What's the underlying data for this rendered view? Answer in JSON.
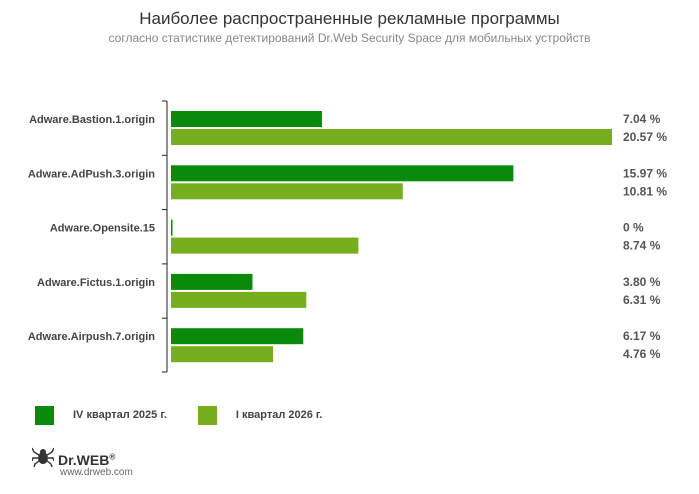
{
  "header": {
    "title": "Наиболее распространенные рекламные программы",
    "subtitle": "согласно статистике детектирований Dr.Web Security Space для мобильных устройств"
  },
  "chart_data": {
    "type": "bar",
    "orientation": "horizontal",
    "categories": [
      "Adware.Bastion.1.origin",
      "Adware.AdPush.3.origin",
      "Adware.Opensite.15",
      "Adware.Fictus.1.origin",
      "Adware.Airpush.7.origin"
    ],
    "series": [
      {
        "name": "IV квартал 2025 г.",
        "values": [
          7.04,
          15.97,
          0,
          3.8,
          6.17
        ],
        "labels": [
          "7.04 %",
          "15.97 %",
          "0 %",
          "3.80 %",
          "6.17 %"
        ],
        "color": "#0a8a0a"
      },
      {
        "name": "I квартал 2026 г.",
        "values": [
          20.57,
          10.81,
          8.74,
          6.31,
          4.76
        ],
        "labels": [
          "20.57 %",
          "10.81 %",
          "8.74 %",
          "6.31 %",
          "4.76 %"
        ],
        "color": "#76ae1e"
      }
    ],
    "xlim": [
      0,
      20.57
    ],
    "grid": false,
    "legend_position": "bottom-left"
  },
  "legend": {
    "items": [
      {
        "label": "IV квартал 2025 г.",
        "color": "#0a8a0a"
      },
      {
        "label": "I квартал 2026 г.",
        "color": "#76ae1e"
      }
    ]
  },
  "footer": {
    "logo_text": "Dr.WEB",
    "logo_mark": "®",
    "url": "www.drweb.com",
    "logo_icon": "spider-icon"
  }
}
